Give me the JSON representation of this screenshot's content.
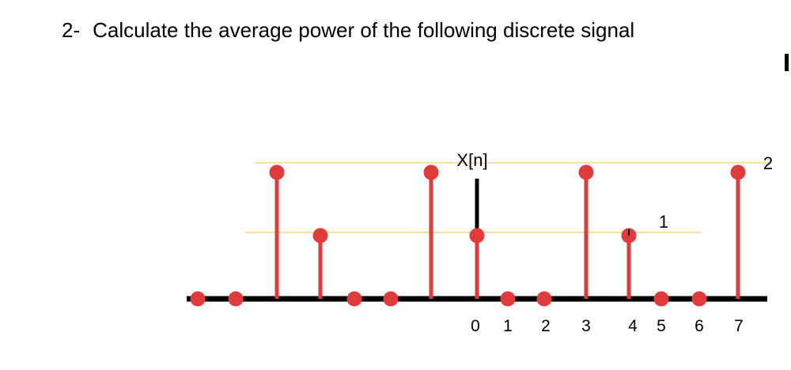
{
  "question": {
    "number": "2-",
    "text": "Calculate the average power of the following discrete signal"
  },
  "chart_data": {
    "type": "stem",
    "ylabel": "X[n]",
    "x_ticks": [
      "0",
      "1",
      "2",
      "3",
      "4",
      "5",
      "6",
      "7"
    ],
    "y_level_labels": [
      "1",
      "2"
    ],
    "points": [
      {
        "n": -7,
        "value": 0
      },
      {
        "n": -6,
        "value": 0
      },
      {
        "n": -5,
        "value": 2
      },
      {
        "n": -4,
        "value": 1
      },
      {
        "n": -3,
        "value": 0
      },
      {
        "n": -2,
        "value": 0
      },
      {
        "n": -1,
        "value": 2
      },
      {
        "n": 0,
        "value": 1
      },
      {
        "n": 1,
        "value": 0
      },
      {
        "n": 2,
        "value": 0
      },
      {
        "n": 3,
        "value": 2
      },
      {
        "n": 4,
        "value": 1
      },
      {
        "n": 5,
        "value": 0
      },
      {
        "n": 6,
        "value": 0
      },
      {
        "n": 7,
        "value": 2
      }
    ],
    "colors": {
      "stem": "#e03a3a",
      "marker": "#e03a3a",
      "axis": "#000000",
      "guide": "#f5d77a"
    }
  }
}
